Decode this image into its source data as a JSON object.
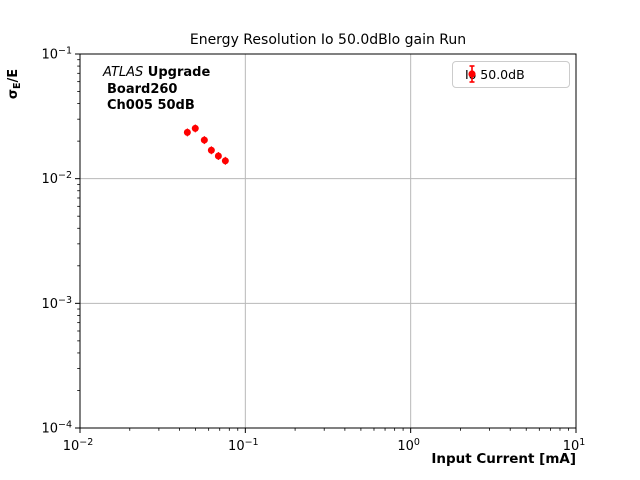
{
  "window": {
    "background": "#ffffff"
  },
  "annotation": {
    "atlas": "ATLAS",
    "upgrade": " Upgrade",
    "board": "Board260",
    "channel": "Ch005 50dB"
  },
  "legend": {
    "label": "Io 50.0dB",
    "marker": "red-circle-with-errorbar",
    "position": "upper right"
  },
  "chart_data": {
    "type": "scatter",
    "title": "Energy Resolution Io 50.0dBlo gain Run",
    "xlabel": "Input Current [mA]",
    "ylabel": "σE/E",
    "ylabel_parts": {
      "sigma": "σ",
      "sub": "E",
      "rest": "/E"
    },
    "xscale": "log",
    "yscale": "log",
    "xlim": [
      0.01,
      10
    ],
    "ylim": [
      0.0001,
      0.1
    ],
    "xticks": [
      0.01,
      0.1,
      1,
      10
    ],
    "yticks": [
      0.0001,
      0.001,
      0.01,
      0.1
    ],
    "grid": true,
    "legend_position": "upper right",
    "series": [
      {
        "name": "Io 50.0dB",
        "color": "#ff0000",
        "marker": "circle",
        "x": [
          0.0446,
          0.0498,
          0.0565,
          0.0623,
          0.0687,
          0.0757
        ],
        "y": [
          0.0235,
          0.0253,
          0.0204,
          0.0169,
          0.0152,
          0.0139
        ]
      }
    ],
    "colors": {
      "series": "#ff0000",
      "grid": "#b8b8b8",
      "spine": "#000000",
      "text": "#000000",
      "legend_border": "#cccccc"
    }
  }
}
